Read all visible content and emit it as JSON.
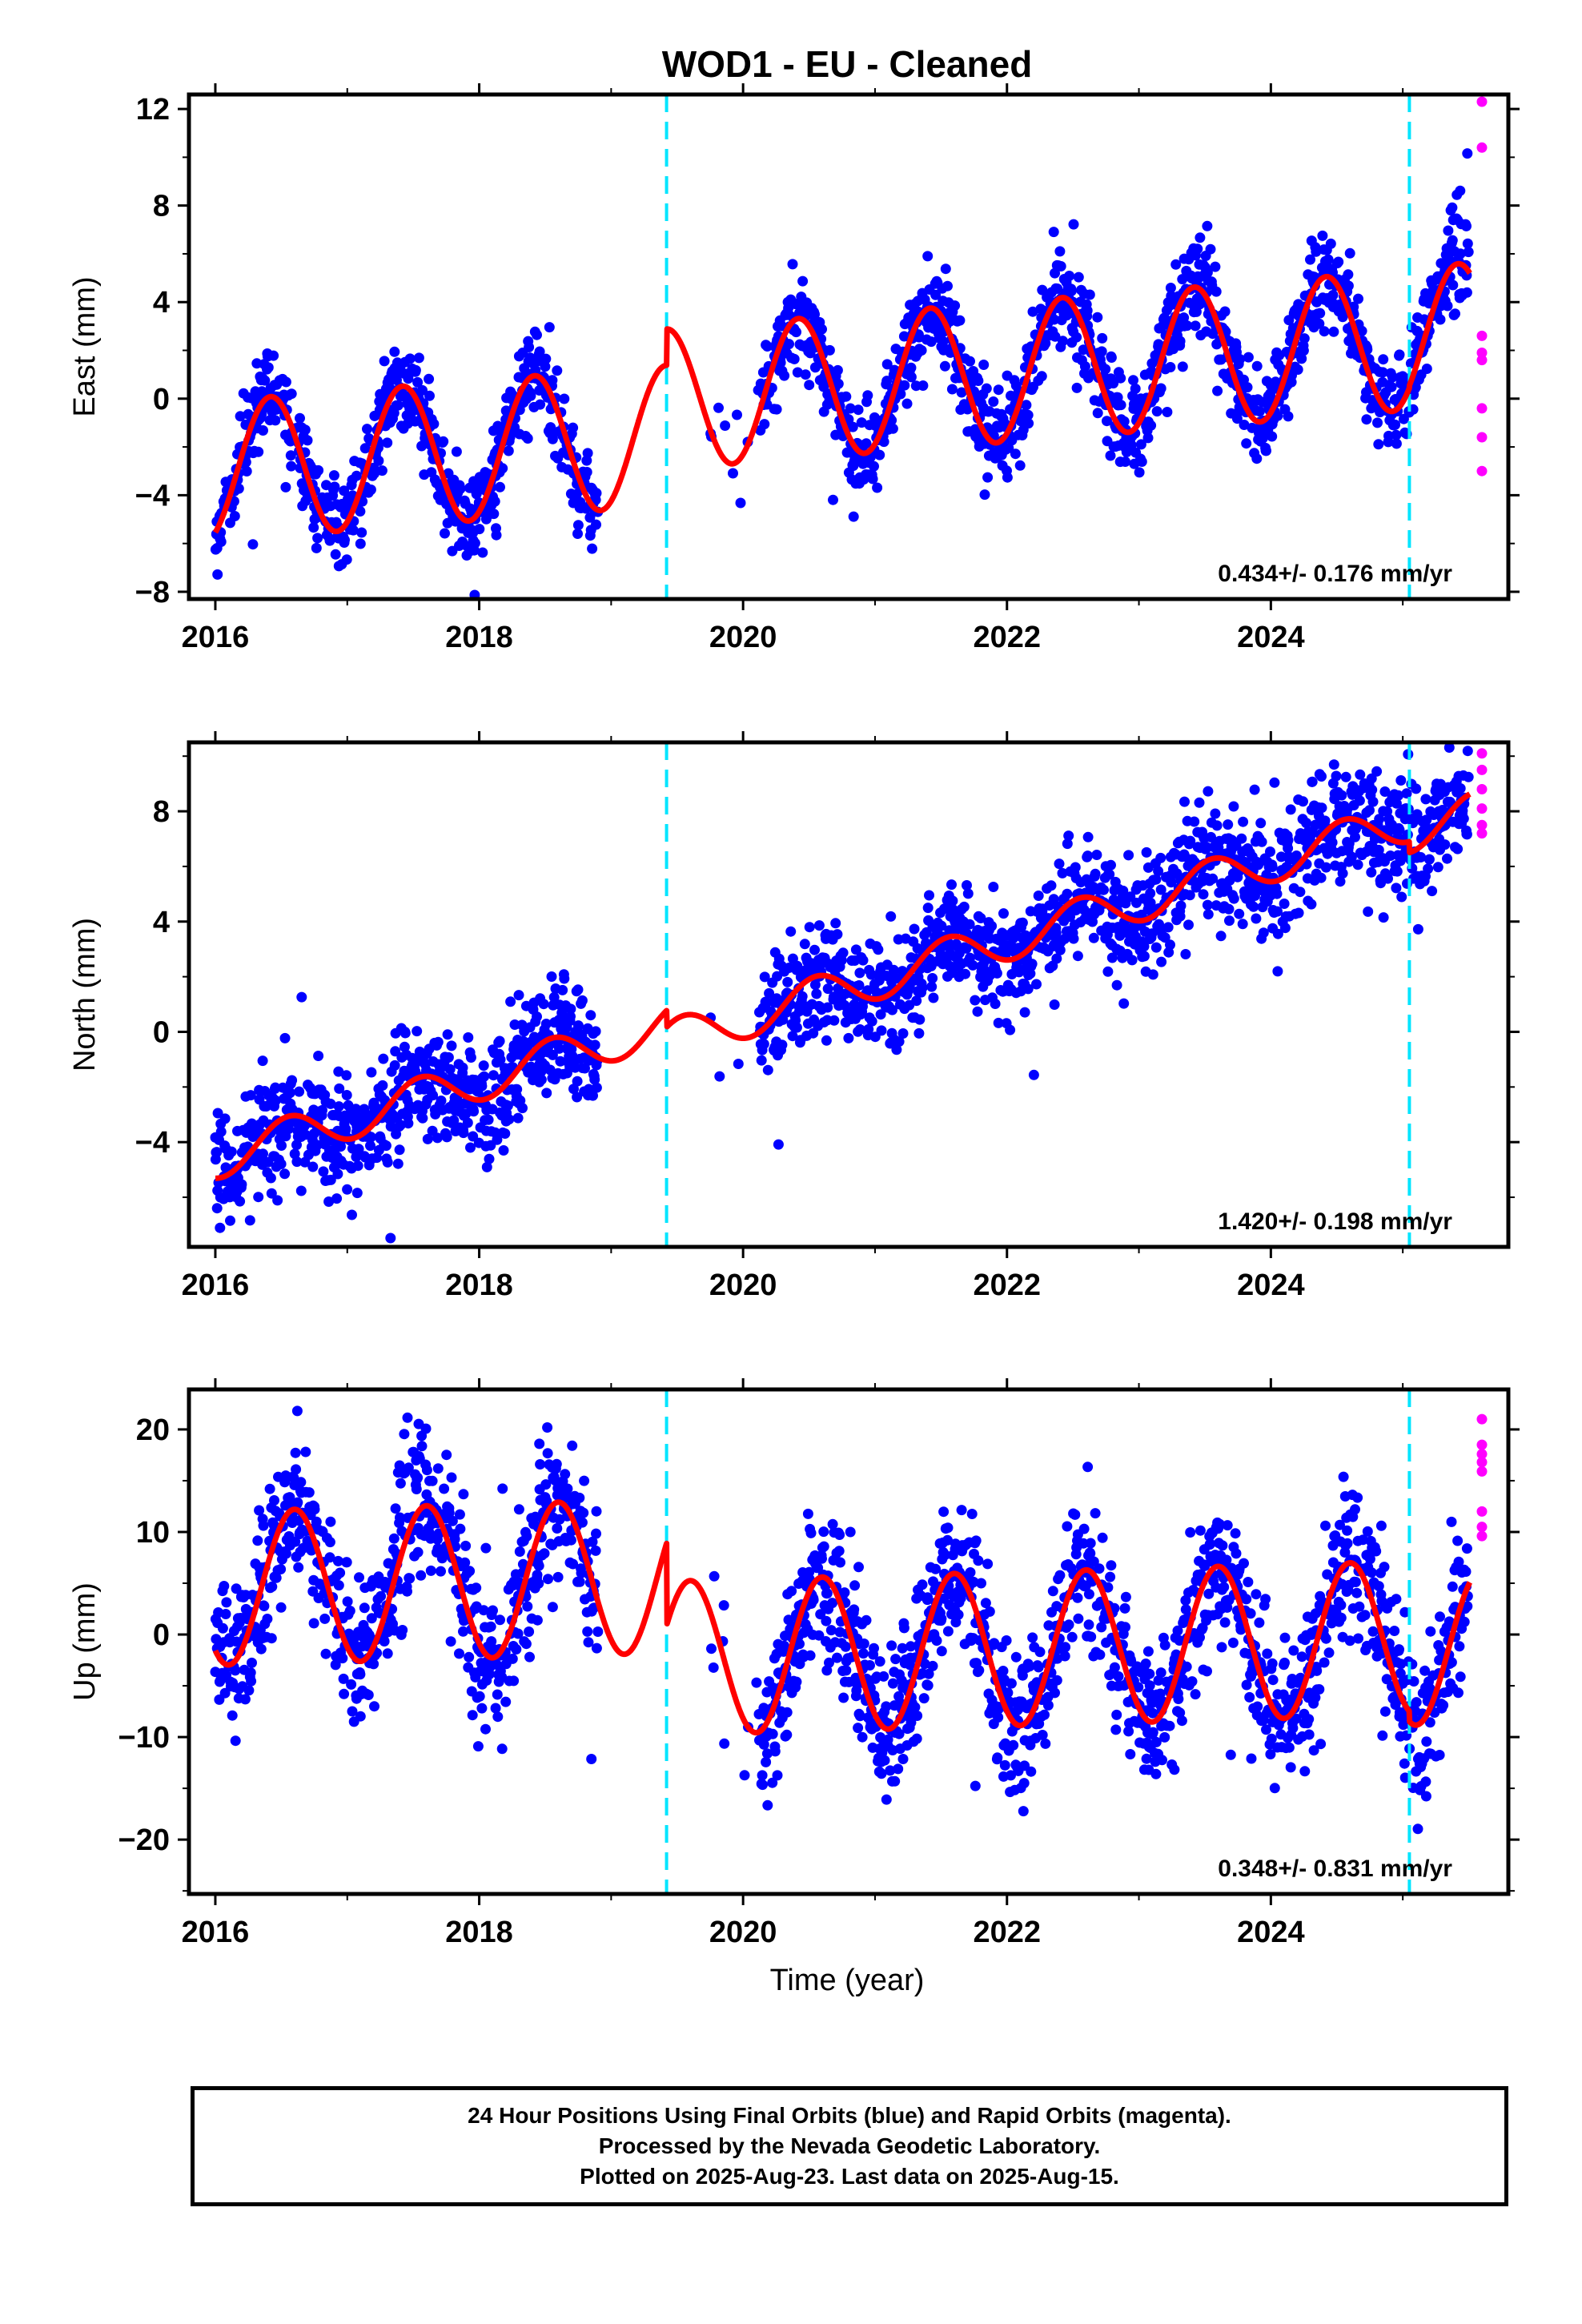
{
  "colors": {
    "final_orbits": "#0000ff",
    "rapid_orbits": "#ff00ff",
    "model": "#ff0000",
    "offsets": "#00e5ff",
    "frame": "#000000"
  },
  "chart_data": {
    "type": "scatter",
    "title": "WOD1  - EU - Cleaned",
    "xlabel": "Time (year)",
    "xlim": [
      2015.8,
      2025.8
    ],
    "x_ticks": [
      2016,
      2018,
      2020,
      2022,
      2024
    ],
    "offset_lines": [
      2019.42,
      2025.05
    ],
    "first_data_year": 2016.0,
    "last_final_year": 2025.5,
    "panels": [
      {
        "ylabel": "East (mm)",
        "ylim": [
          -8.3,
          12.6
        ],
        "y_ticks": [
          -8,
          -4,
          0,
          4,
          8,
          12
        ],
        "rate_label": "0.434+/- 0.176 mm/yr",
        "model": {
          "trend_start": -3.0,
          "rate": 0.434,
          "annual_amplitude": 2.9,
          "annual_peak_phase": 0.42,
          "segment_offsets": [
            0,
            1.5,
            1.6
          ],
          "noise_sd": 0.95
        },
        "data_gap": [
          2018.9,
          2019.75
        ],
        "sparse_interval": [
          2019.75,
          2020.12
        ],
        "rapid_points": [
          {
            "x": 2025.6,
            "y": 12.3
          },
          {
            "x": 2025.6,
            "y": 10.4
          },
          {
            "x": 2025.6,
            "y": 2.6
          },
          {
            "x": 2025.6,
            "y": 1.9
          },
          {
            "x": 2025.6,
            "y": 1.6
          },
          {
            "x": 2025.6,
            "y": -0.4
          },
          {
            "x": 2025.6,
            "y": -1.6
          },
          {
            "x": 2025.6,
            "y": -3.0
          }
        ]
      },
      {
        "ylabel": "North (mm)",
        "ylim": [
          -7.8,
          10.5
        ],
        "y_ticks": [
          -4,
          0,
          4,
          8
        ],
        "rate_label": "1.420+/- 0.198 mm/yr",
        "model": {
          "trend_start": -4.6,
          "rate": 1.42,
          "annual_amplitude": 0.75,
          "annual_peak_phase": 0.55,
          "segment_offsets": [
            0,
            -0.6,
            -1.0
          ],
          "noise_sd": 1.0
        },
        "data_gap": [
          2018.9,
          2019.75
        ],
        "sparse_interval": [
          2019.75,
          2020.12
        ],
        "rapid_points": [
          {
            "x": 2025.6,
            "y": 10.1
          },
          {
            "x": 2025.6,
            "y": 9.5
          },
          {
            "x": 2025.6,
            "y": 8.8
          },
          {
            "x": 2025.6,
            "y": 8.1
          },
          {
            "x": 2025.6,
            "y": 7.5
          },
          {
            "x": 2025.6,
            "y": 7.2
          }
        ]
      },
      {
        "ylabel": "Up (mm)",
        "ylim": [
          -25.3,
          23.9
        ],
        "y_ticks": [
          -20,
          -10,
          0,
          10,
          20
        ],
        "rate_label": "0.348+/- 0.831 mm/yr",
        "model": {
          "trend_start": 4.5,
          "rate": 0.348,
          "annual_amplitude": 7.5,
          "annual_peak_phase": 0.6,
          "segment_offsets": [
            0,
            -8.0,
            -9.0
          ],
          "noise_sd": 3.6
        },
        "data_gap": [
          2018.9,
          2019.75
        ],
        "sparse_interval": [
          2019.75,
          2020.12
        ],
        "rapid_points": [
          {
            "x": 2025.6,
            "y": 21.0
          },
          {
            "x": 2025.6,
            "y": 18.5
          },
          {
            "x": 2025.6,
            "y": 17.6
          },
          {
            "x": 2025.6,
            "y": 16.8
          },
          {
            "x": 2025.6,
            "y": 15.9
          },
          {
            "x": 2025.6,
            "y": 12.0
          },
          {
            "x": 2025.6,
            "y": 10.5
          },
          {
            "x": 2025.6,
            "y": 9.6
          }
        ]
      }
    ]
  },
  "footer": {
    "line1": "24 Hour Positions Using Final Orbits (blue) and Rapid Orbits (magenta).",
    "line2": "Processed by the Nevada Geodetic Laboratory.",
    "line3": "Plotted on 2025-Aug-23. Last data on 2025-Aug-15."
  }
}
